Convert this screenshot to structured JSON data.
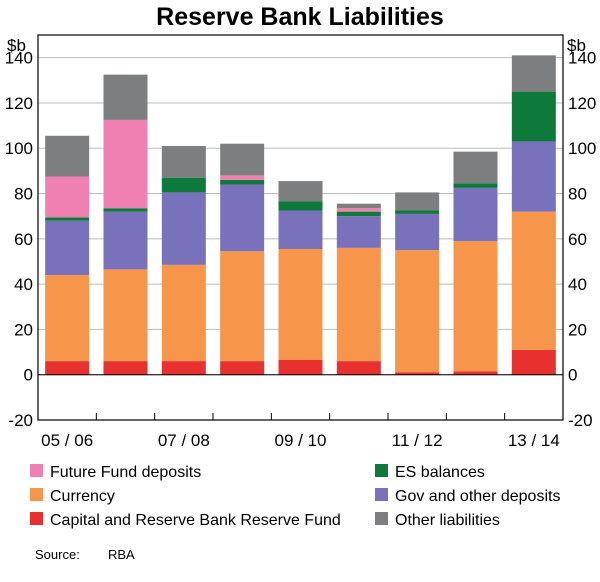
{
  "chart_data": {
    "type": "bar",
    "stacked": true,
    "title": "Reserve Bank Liabilities",
    "y_unit_left": "$b",
    "y_unit_right": "$b",
    "ylim": [
      -20,
      150
    ],
    "yticks": [
      -20,
      0,
      20,
      40,
      60,
      80,
      100,
      120,
      140
    ],
    "categories": [
      "05/06",
      "06/07",
      "07/08",
      "08/09",
      "09/10",
      "10/11",
      "11/12",
      "12/13",
      "13/14"
    ],
    "x_tick_labels": [
      "05 / 06",
      "07 / 08",
      "09 / 10",
      "11 / 12",
      "13 / 14"
    ],
    "x_tick_label_categories": [
      "05/06",
      "07/08",
      "09/10",
      "11/12",
      "13/14"
    ],
    "grid": true,
    "legend_position": "bottom",
    "series": [
      {
        "name": "Capital and Reserve Bank Reserve Fund",
        "color": "#e8302e",
        "values": [
          6,
          6,
          6,
          6,
          6.5,
          6,
          1,
          1.5,
          11
        ]
      },
      {
        "name": "Currency",
        "color": "#f7954b",
        "values": [
          38,
          40.5,
          42.5,
          48.5,
          49,
          50,
          54,
          57.5,
          61
        ]
      },
      {
        "name": "Gov and other deposits",
        "color": "#7a71bd",
        "values": [
          24,
          25.5,
          32,
          29.5,
          17,
          14,
          16,
          23.5,
          31
        ]
      },
      {
        "name": "ES balances",
        "color": "#0d7a3c",
        "values": [
          1.5,
          1.5,
          6.5,
          2,
          4,
          2,
          1.5,
          2,
          22
        ]
      },
      {
        "name": "Future Fund deposits",
        "color": "#f07fb2",
        "values": [
          18,
          39,
          0,
          2,
          0,
          1.5,
          0,
          0,
          0
        ]
      },
      {
        "name": "Other liabilities",
        "color": "#7d7e80",
        "values": [
          18,
          20,
          14,
          14,
          9,
          2,
          8,
          14,
          16
        ]
      }
    ],
    "legend_order": [
      "Future Fund deposits",
      "ES balances",
      "Currency",
      "Gov and other deposits",
      "Capital and Reserve Bank Reserve Fund",
      "Other liabilities"
    ],
    "source_label": "Source:",
    "source_value": "RBA"
  }
}
